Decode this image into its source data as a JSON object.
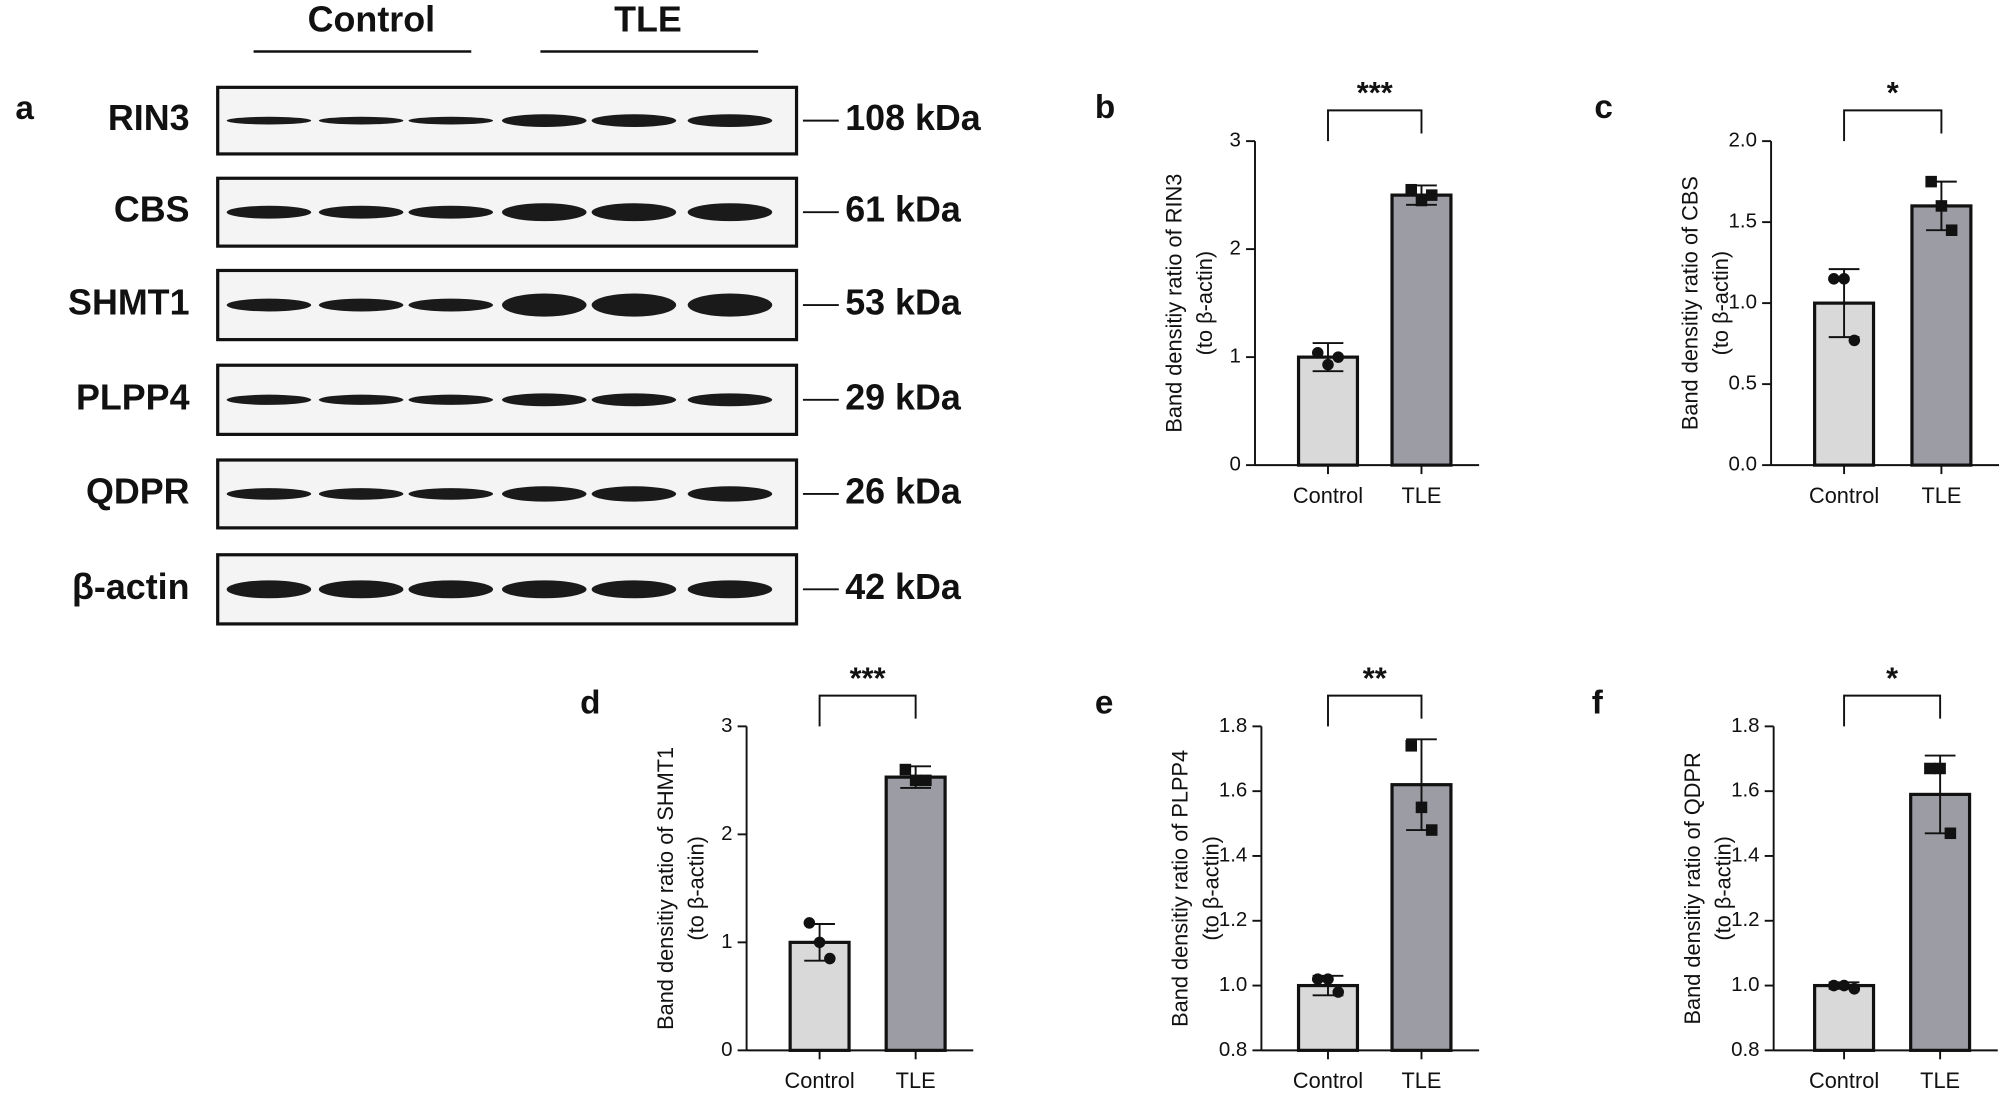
{
  "blot": {
    "panel_label": "a",
    "groups": [
      "Control",
      "TLE"
    ],
    "rows": [
      {
        "label": "RIN3",
        "size": "108 kDa"
      },
      {
        "label": "CBS",
        "size": "61 kDa"
      },
      {
        "label": "SHMT1",
        "size": "53 kDa"
      },
      {
        "label": "PLPP4",
        "size": "29 kDa"
      },
      {
        "label": "QDPR",
        "size": "26 kDa"
      },
      {
        "label": "β-actin",
        "size": "42 kDa"
      }
    ]
  },
  "chart_data": [
    {
      "type": "bar",
      "panel_label": "b",
      "y_label": [
        "Band densitiy ratio of RIN3",
        "(to β-actin)"
      ],
      "categories": [
        "Control",
        "TLE"
      ],
      "values": [
        1.0,
        2.5
      ],
      "errors": [
        0.13,
        0.09
      ],
      "points": [
        [
          1.04,
          0.93,
          1.0
        ],
        [
          2.55,
          2.45,
          2.5
        ]
      ],
      "colors": [
        "#d9d9d9",
        "#9c9ca4"
      ],
      "significance": "***",
      "ylim": [
        0,
        3
      ],
      "yticks": [
        0,
        1,
        2,
        3
      ]
    },
    {
      "type": "bar",
      "panel_label": "c",
      "y_label": [
        "Band densitiy ratio of CBS",
        "(to β-actin)"
      ],
      "categories": [
        "Control",
        "TLE"
      ],
      "values": [
        1.0,
        1.6
      ],
      "errors": [
        0.21,
        0.15
      ],
      "points": [
        [
          1.15,
          1.15,
          0.77
        ],
        [
          1.75,
          1.6,
          1.45
        ]
      ],
      "colors": [
        "#d9d9d9",
        "#9c9ca4"
      ],
      "significance": "*",
      "ylim": [
        0,
        2
      ],
      "yticks": [
        {
          "value": 0,
          "label": "0.0"
        },
        0.5,
        {
          "value": 1,
          "label": "1.0"
        },
        1.5,
        {
          "value": 2,
          "label": "2.0"
        }
      ]
    },
    {
      "type": "bar",
      "panel_label": "d",
      "y_label": [
        "Band densitiy ratio of SHMT1",
        "(to β-actin)"
      ],
      "categories": [
        "Control",
        "TLE"
      ],
      "values": [
        1.0,
        2.53
      ],
      "errors": [
        0.17,
        0.1
      ],
      "points": [
        [
          1.18,
          1.0,
          0.85
        ],
        [
          2.6,
          2.5,
          2.5
        ]
      ],
      "colors": [
        "#d9d9d9",
        "#9c9ca4"
      ],
      "significance": "***",
      "ylim": [
        0,
        3
      ],
      "yticks": [
        0,
        1,
        2,
        3
      ]
    },
    {
      "type": "bar",
      "panel_label": "e",
      "y_label": [
        "Band densitiy ratio of PLPP4",
        "(to β-actin)"
      ],
      "categories": [
        "Control",
        "TLE"
      ],
      "values": [
        1.0,
        1.62
      ],
      "errors": [
        0.03,
        0.14
      ],
      "points": [
        [
          1.02,
          1.02,
          0.98
        ],
        [
          1.74,
          1.55,
          1.48
        ]
      ],
      "colors": [
        "#d9d9d9",
        "#9c9ca4"
      ],
      "significance": "**",
      "ylim": [
        0.8,
        1.8
      ],
      "yticks": [
        0.8,
        {
          "value": 1,
          "label": "1.0"
        },
        1.2,
        1.4,
        1.6,
        1.8
      ]
    },
    {
      "type": "bar",
      "panel_label": "f",
      "y_label": [
        "Band densitiy ratio of QDPR",
        "(to β-actin)"
      ],
      "categories": [
        "Control",
        "TLE"
      ],
      "values": [
        1.0,
        1.59
      ],
      "errors": [
        0.01,
        0.12
      ],
      "points": [
        [
          1.0,
          1.0,
          0.99
        ],
        [
          1.67,
          1.67,
          1.47
        ]
      ],
      "colors": [
        "#d9d9d9",
        "#9c9ca4"
      ],
      "significance": "*",
      "ylim": [
        0.8,
        1.8
      ],
      "yticks": [
        0.8,
        {
          "value": 1,
          "label": "1.0"
        },
        1.2,
        1.4,
        1.6,
        1.8
      ]
    }
  ]
}
